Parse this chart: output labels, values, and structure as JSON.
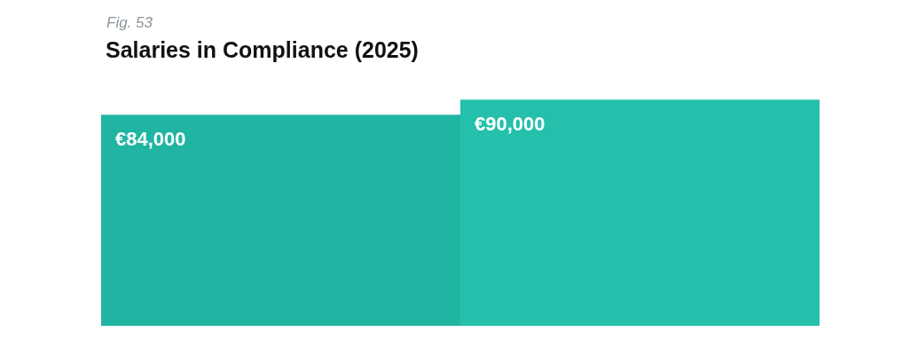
{
  "chart_data": {
    "type": "bar",
    "title": "Salaries in Compliance (2025)",
    "annotations": [
      "Fig. 53"
    ],
    "categories": [
      null,
      null
    ],
    "values": [
      84000,
      90000
    ],
    "colors": [
      "#20b5a2",
      "#24c0ab"
    ],
    "value_labels": [
      "€84,000",
      "€90,000"
    ]
  }
}
